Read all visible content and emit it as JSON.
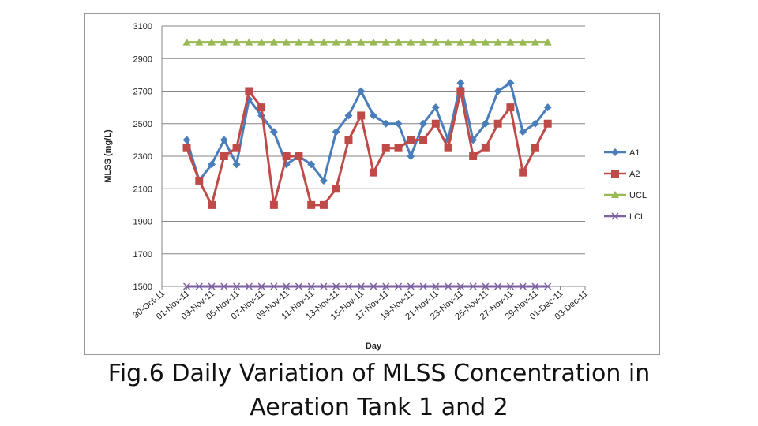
{
  "chart_data": {
    "type": "line",
    "caption": [
      "Fig.6 Daily Variation of MLSS Concentration in",
      "Aeration Tank 1 and 2"
    ],
    "x_label": "Day",
    "y_label": "MLSS (mg/L)",
    "x": [
      "01-Nov-11",
      "02-Nov-11",
      "03-Nov-11",
      "04-Nov-11",
      "05-Nov-11",
      "06-Nov-11",
      "07-Nov-11",
      "08-Nov-11",
      "09-Nov-11",
      "10-Nov-11",
      "11-Nov-11",
      "12-Nov-11",
      "13-Nov-11",
      "14-Nov-11",
      "15-Nov-11",
      "16-Nov-11",
      "17-Nov-11",
      "18-Nov-11",
      "19-Nov-11",
      "20-Nov-11",
      "21-Nov-11",
      "22-Nov-11",
      "23-Nov-11",
      "24-Nov-11",
      "25-Nov-11",
      "26-Nov-11",
      "27-Nov-11",
      "28-Nov-11",
      "29-Nov-11",
      "30-Nov-11"
    ],
    "xlim": [
      "30-Oct-11",
      "03-Dec-11"
    ],
    "xticks": [
      "30-Oct-11",
      "01-Nov-11",
      "03-Nov-11",
      "05-Nov-11",
      "07-Nov-11",
      "09-Nov-11",
      "11-Nov-11",
      "13-Nov-11",
      "15-Nov-11",
      "17-Nov-11",
      "19-Nov-11",
      "21-Nov-11",
      "23-Nov-11",
      "25-Nov-11",
      "27-Nov-11",
      "29-Nov-11",
      "01-Dec-11",
      "03-Dec-11"
    ],
    "ylim": [
      1500,
      3100
    ],
    "yticks": [
      1500,
      1700,
      1900,
      2100,
      2300,
      2500,
      2700,
      2900,
      3100
    ],
    "grid": true,
    "legend": "right",
    "series": [
      {
        "name": "A1",
        "color": "#4a7ebb",
        "marker": "diamond",
        "values": [
          2400,
          2150,
          2250,
          2400,
          2250,
          2650,
          2550,
          2450,
          2250,
          2300,
          2250,
          2150,
          2450,
          2550,
          2700,
          2550,
          2500,
          2500,
          2300,
          2500,
          2600,
          2400,
          2750,
          2400,
          2500,
          2700,
          2750,
          2450,
          2500,
          2600
        ]
      },
      {
        "name": "A2",
        "color": "#be4b48",
        "marker": "square",
        "values": [
          2350,
          2150,
          2000,
          2300,
          2350,
          2700,
          2600,
          2000,
          2300,
          2300,
          2000,
          2000,
          2100,
          2400,
          2550,
          2200,
          2350,
          2350,
          2400,
          2400,
          2500,
          2350,
          2700,
          2300,
          2350,
          2500,
          2600,
          2200,
          2350,
          2500
        ]
      },
      {
        "name": "UCL",
        "color": "#98b954",
        "marker": "triangle",
        "values": [
          3000,
          3000,
          3000,
          3000,
          3000,
          3000,
          3000,
          3000,
          3000,
          3000,
          3000,
          3000,
          3000,
          3000,
          3000,
          3000,
          3000,
          3000,
          3000,
          3000,
          3000,
          3000,
          3000,
          3000,
          3000,
          3000,
          3000,
          3000,
          3000,
          3000
        ]
      },
      {
        "name": "LCL",
        "color": "#7d60a0",
        "marker": "x",
        "values": [
          1500,
          1500,
          1500,
          1500,
          1500,
          1500,
          1500,
          1500,
          1500,
          1500,
          1500,
          1500,
          1500,
          1500,
          1500,
          1500,
          1500,
          1500,
          1500,
          1500,
          1500,
          1500,
          1500,
          1500,
          1500,
          1500,
          1500,
          1500,
          1500,
          1500
        ]
      }
    ]
  }
}
